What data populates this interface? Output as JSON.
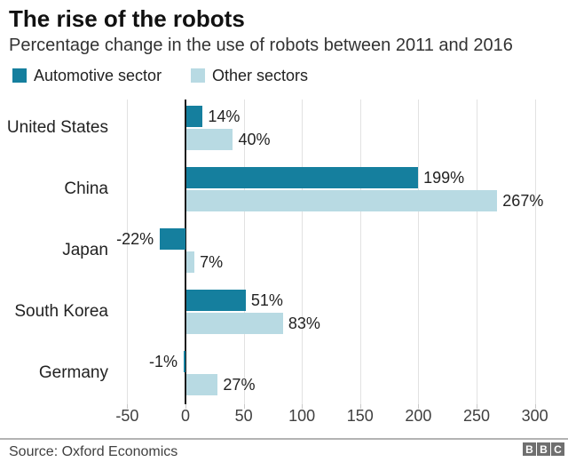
{
  "chart_data": {
    "type": "bar",
    "orientation": "horizontal",
    "title": "The rise of the robots",
    "subtitle": "Percentage change in the use of robots between 2011 and 2016",
    "categories": [
      "United States",
      "China",
      "Japan",
      "South Korea",
      "Germany"
    ],
    "series": [
      {
        "name": "Automotive sector",
        "color": "#157F9E",
        "values": [
          14,
          199,
          -22,
          51,
          -1
        ],
        "labels": [
          "14%",
          "199%",
          "-22%",
          "51%",
          "-1%"
        ]
      },
      {
        "name": "Other sectors",
        "color": "#B8DAE3",
        "values": [
          40,
          267,
          7,
          83,
          27
        ],
        "labels": [
          "40%",
          "267%",
          "7%",
          "83%",
          "27%"
        ]
      }
    ],
    "x_axis": {
      "ticks": [
        -50,
        0,
        50,
        100,
        150,
        200,
        250,
        300
      ],
      "tick_labels": [
        "-50",
        "0",
        "50",
        "100",
        "150",
        "200",
        "250",
        "300"
      ],
      "range": [
        -75,
        315
      ]
    },
    "grid": "vertical",
    "legend_position": "top",
    "source": "Source: Oxford Economics",
    "logo_letters": [
      "B",
      "B",
      "C"
    ],
    "colors": {
      "automotive": "#157F9E",
      "other": "#B8DAE3",
      "gridline": "#e2e2e2",
      "zero_axis": "#1a1a1a",
      "text": "#222222"
    }
  }
}
